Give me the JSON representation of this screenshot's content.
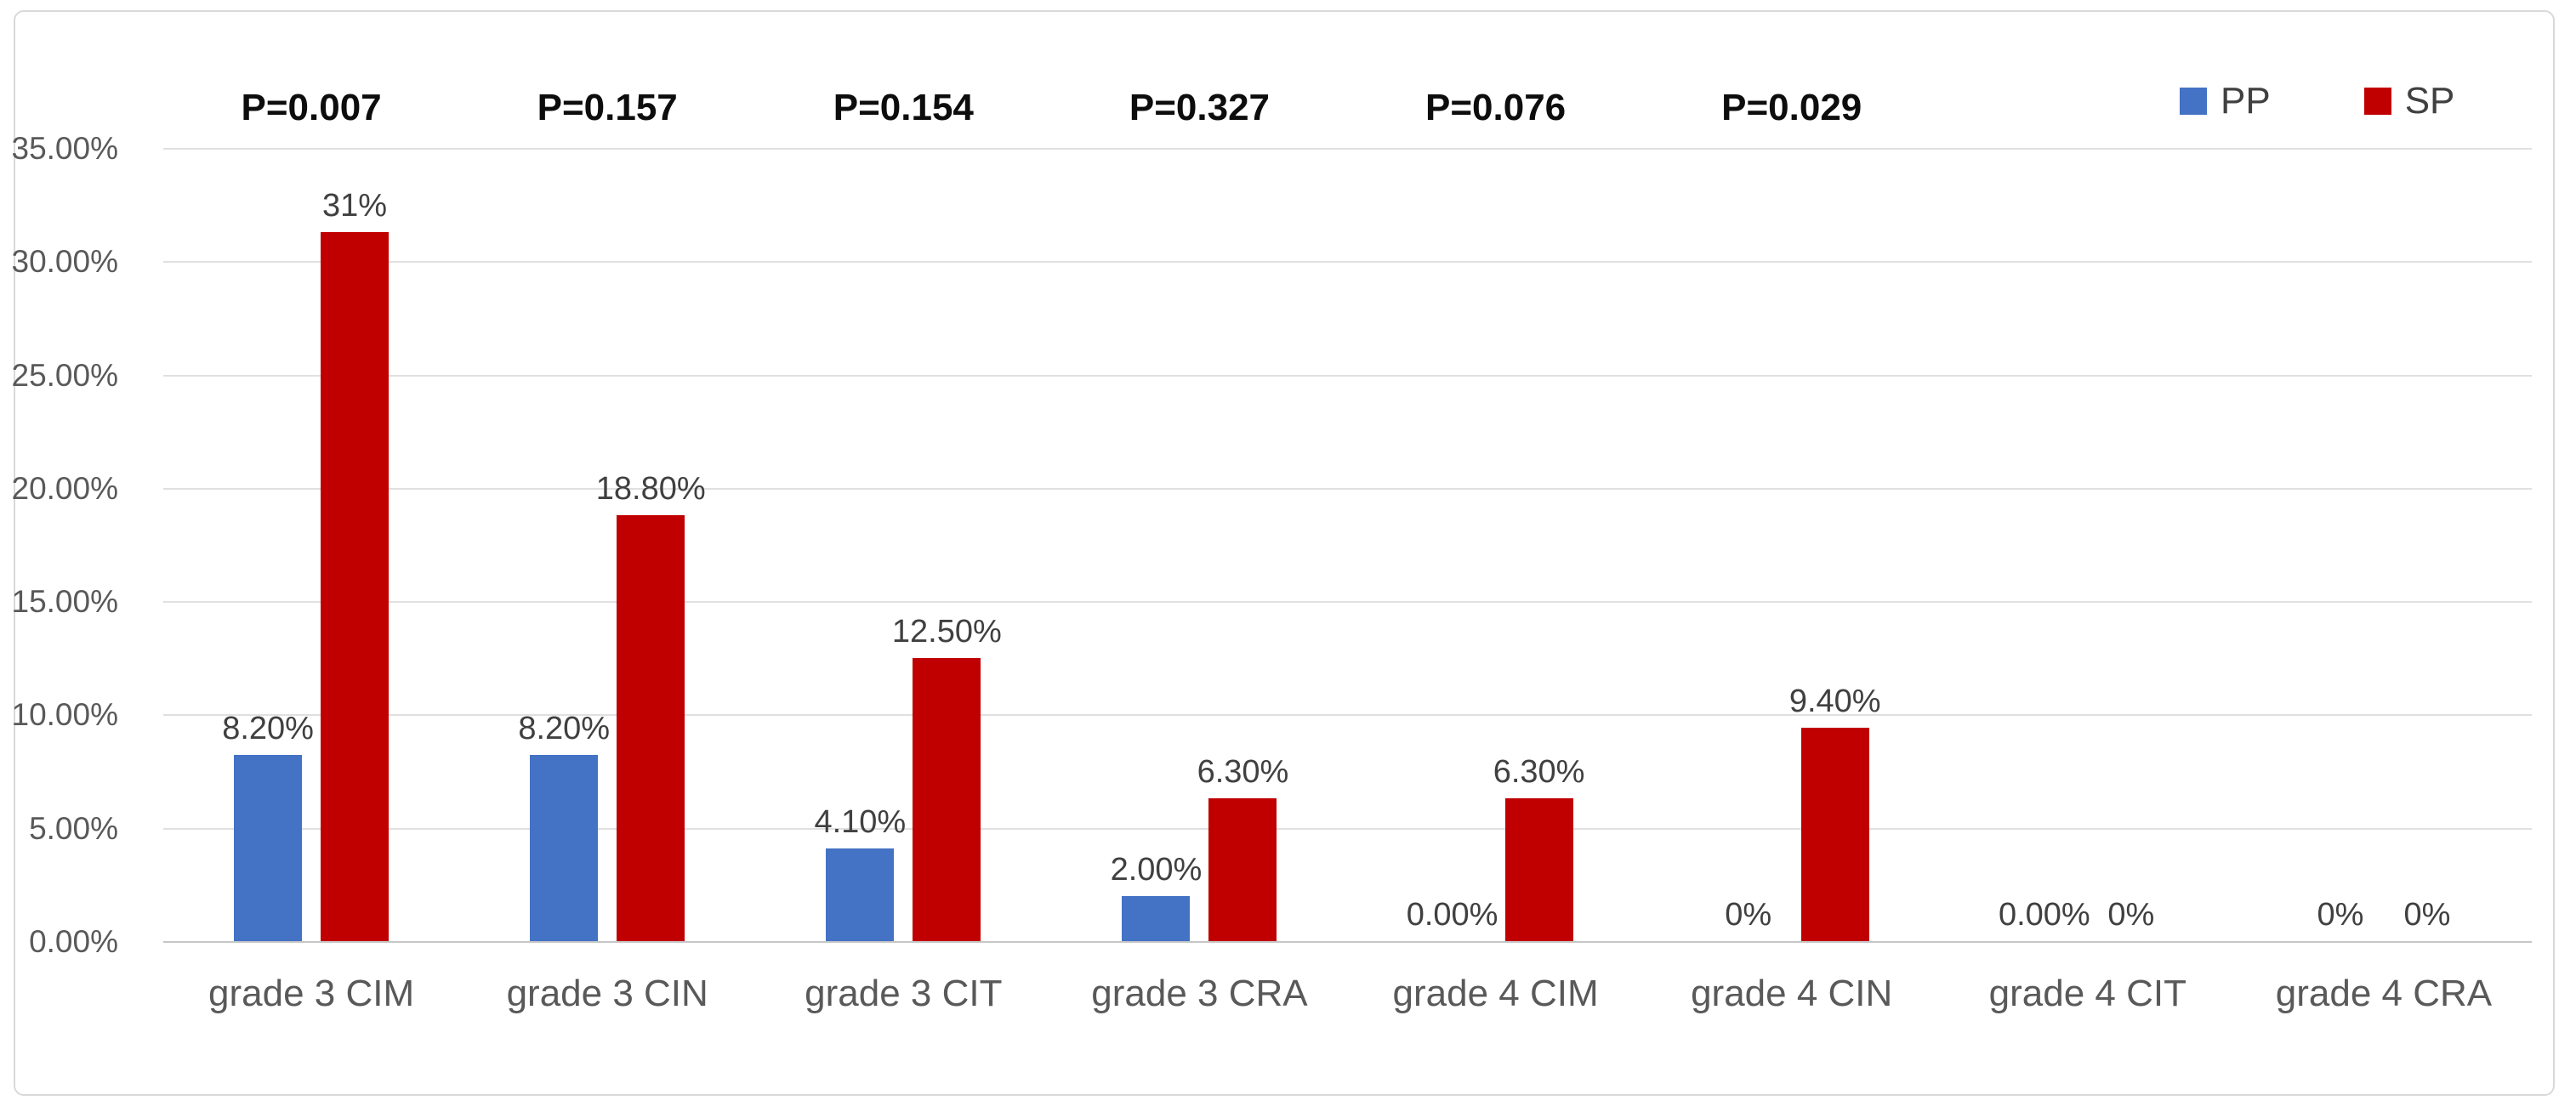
{
  "chart_data": {
    "type": "bar",
    "categories": [
      "grade 3 CIM",
      "grade 3 CIN",
      "grade 3 CIT",
      "grade 3 CRA",
      "grade 4 CIM",
      "grade 4 CIN",
      "grade 4 CIT",
      "grade 4 CRA"
    ],
    "series": [
      {
        "name": "PP",
        "color": "#4472C4",
        "values": [
          8.2,
          8.2,
          4.1,
          2.0,
          0,
          0,
          0,
          0
        ],
        "labels": [
          "8.20%",
          "8.20%",
          "4.10%",
          "2.00%",
          "0.00%",
          "0%",
          "0.00%",
          "0%"
        ]
      },
      {
        "name": "SP",
        "color": "#C00000",
        "values": [
          31.3,
          18.8,
          12.5,
          6.3,
          6.3,
          9.4,
          0,
          0
        ],
        "labels": [
          "31%",
          "18.80%",
          "12.50%",
          "6.30%",
          "6.30%",
          "9.40%",
          "0%",
          "0%"
        ]
      }
    ],
    "p_values": [
      "P=0.007",
      "P=0.157",
      "P=0.154",
      "P=0.327",
      "P=0.076",
      "P=0.029",
      "",
      ""
    ],
    "y_axis": {
      "tick_labels": [
        "0.00%",
        "5.00%",
        "10.00%",
        "15.00%",
        "20.00%",
        "25.00%",
        "30.00%",
        "35.00%"
      ],
      "tick_values": [
        0,
        5,
        10,
        15,
        20,
        25,
        30,
        35
      ],
      "ylim": [
        0,
        35
      ],
      "grid": true
    },
    "legend": {
      "position": "top-right",
      "items": [
        {
          "label": "PP",
          "color": "#4472C4"
        },
        {
          "label": "SP",
          "color": "#C00000"
        }
      ]
    },
    "title": "",
    "xlabel": "",
    "ylabel": ""
  }
}
